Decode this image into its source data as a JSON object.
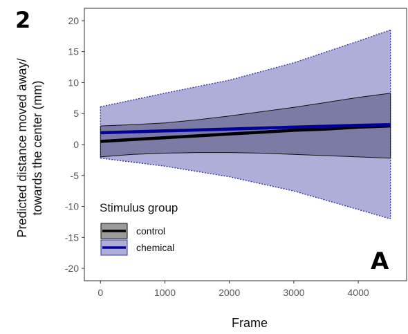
{
  "chart_data": {
    "type": "line",
    "panel_number": "2",
    "panel_letter": "A",
    "xlabel": "Frame",
    "ylabel_line1": "Predicted distance moved away/",
    "ylabel_line2": "towards the center (mm)",
    "xlim": [
      -250,
      4750
    ],
    "ylim": [
      -22,
      22
    ],
    "xticks": [
      0,
      1000,
      2000,
      3000,
      4000
    ],
    "yticks": [
      20,
      15,
      10,
      5,
      0,
      -5,
      -10,
      -15,
      -20
    ],
    "xtick_labels": [
      "0",
      "1000",
      "2000",
      "3000",
      "4000"
    ],
    "ytick_labels": [
      "20",
      "15",
      "10",
      "5",
      "0",
      "-5",
      "-10",
      "-15",
      "-20"
    ],
    "grid": false,
    "legend": {
      "title": "Stimulus group",
      "placement": "bottom-left",
      "entries": [
        "control",
        "chemical"
      ]
    },
    "series": [
      {
        "name": "chemical",
        "line_color": "#000099",
        "band_color": "#aeaed8",
        "band_edge_color": "#3333aa",
        "x": [
          0,
          1000,
          2000,
          3000,
          4000,
          4500
        ],
        "fit": [
          1.9,
          2.2,
          2.5,
          2.8,
          3.1,
          3.2
        ],
        "lower": [
          -2.2,
          -3.5,
          -5.2,
          -7.5,
          -10.5,
          -12.0
        ],
        "upper": [
          6.1,
          8.3,
          10.4,
          13.2,
          16.7,
          18.5
        ]
      },
      {
        "name": "control",
        "line_color": "#000000",
        "band_color": "#7b7ba6",
        "band_edge_color": "#111111",
        "x": [
          0,
          500,
          1000,
          1500,
          2000,
          2500,
          3000,
          3500,
          4000,
          4500
        ],
        "fit": [
          0.5,
          0.8,
          1.1,
          1.4,
          1.7,
          2.0,
          2.3,
          2.5,
          2.8,
          3.0
        ],
        "lower": [
          -2.0,
          -1.6,
          -1.4,
          -1.3,
          -1.3,
          -1.4,
          -1.6,
          -1.8,
          -2.0,
          -2.2
        ],
        "upper": [
          3.0,
          3.2,
          3.5,
          4.0,
          4.6,
          5.3,
          6.0,
          6.8,
          7.6,
          8.3
        ]
      }
    ]
  }
}
